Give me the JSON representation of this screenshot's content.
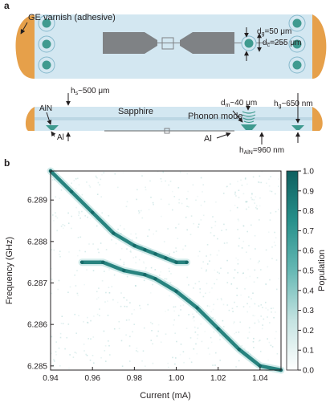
{
  "panel_a": {
    "label": "a",
    "top_view": {
      "ge_varnish": "GE varnish (adhesive)",
      "dg_pre": "d",
      "dg_sub": "g",
      "dg_val": "=50 μm",
      "dc_pre": "d",
      "dc_sub": "c",
      "dc_val": "=255 μm"
    },
    "side_view": {
      "hs_pre": "h",
      "hs_sub": "s",
      "hs_val": "~500 μm",
      "aln": "AlN",
      "al_left": "Al",
      "sapphire": "Sapphire",
      "dm_pre": "d",
      "dm_sub": "m",
      "dm_val": "~40 μm",
      "phonon_mode": "Phonon mode",
      "hg_pre": "h",
      "hg_sub": "g",
      "hg_val": "~650 nm",
      "al_bottom": "Al",
      "haln_pre": "h",
      "haln_sub": "AlN",
      "haln_val": "=960 nm"
    },
    "colors": {
      "substrate": "#d3e7f1",
      "adhesive": "#e6a04a",
      "metal": "#7f8285",
      "pad": "#3f9a8f"
    }
  },
  "panel_b": {
    "label": "b",
    "colorbar_label": "Population",
    "colorbar_ticks": [
      "0.0",
      "0.1",
      "0.2",
      "0.3",
      "0.4",
      "0.5",
      "0.6",
      "0.7",
      "0.8",
      "0.9",
      "1.0"
    ],
    "colormap": [
      "#ffffff",
      "#0f6b6b"
    ]
  },
  "chart_data": {
    "type": "heatmap",
    "xlabel": "Current (mA)",
    "ylabel": "Frequency (GHz)",
    "xlim": [
      0.94,
      1.05
    ],
    "ylim": [
      6.2849,
      6.2897
    ],
    "xticks": [
      0.94,
      0.96,
      0.98,
      1.0,
      1.02,
      1.04
    ],
    "xtick_labels": [
      "0.94",
      "0.96",
      "0.98",
      "1.00",
      "1.02",
      "1.04"
    ],
    "yticks": [
      6.285,
      6.286,
      6.287,
      6.288,
      6.289
    ],
    "ytick_labels": [
      "6.285",
      "6.286",
      "6.287",
      "6.288",
      "6.289"
    ],
    "colorbar_range": [
      0.0,
      1.0
    ],
    "series": [
      {
        "x": [
          0.94,
          0.95,
          0.96,
          0.97,
          0.98,
          0.985,
          0.99,
          0.995,
          1.0,
          1.005
        ],
        "y": [
          6.2897,
          6.2892,
          6.2887,
          6.2882,
          6.2879,
          6.2878,
          6.2877,
          6.2876,
          6.2875,
          6.2875
        ]
      },
      {
        "x": [
          0.955,
          0.965,
          0.975,
          0.985,
          0.99,
          1.0,
          1.01,
          1.02,
          1.03,
          1.04,
          1.05
        ],
        "y": [
          6.2875,
          6.2875,
          6.2873,
          6.2872,
          6.2871,
          6.2868,
          6.2864,
          6.2859,
          6.2854,
          6.285,
          6.2849
        ]
      }
    ]
  }
}
